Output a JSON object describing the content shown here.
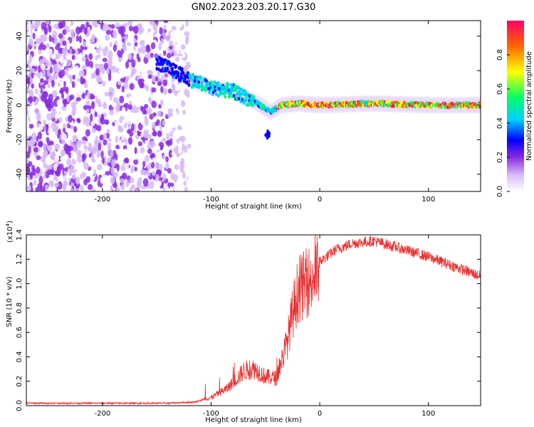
{
  "title": "GN02.2023.203.20.17.G30",
  "chart_data": [
    {
      "type": "heatmap",
      "xlabel": "Height of straight line (km)",
      "ylabel": "Frequency (Hz)",
      "xlim": [
        -270,
        148
      ],
      "ylim": [
        -50,
        49
      ],
      "xticks": [
        "-200",
        "-100",
        "0",
        "100"
      ],
      "yticks": [
        "-40",
        "-20",
        "0",
        "20",
        "40"
      ],
      "colorbar": {
        "label": "Normalized spectral amplitude",
        "range": [
          0,
          1
        ],
        "ticks": [
          "0.0",
          "0.2",
          "0.4",
          "0.6",
          "0.8"
        ],
        "colors": [
          "#ffffff",
          "#d6b8f8",
          "#8a2be2",
          "#0000ff",
          "#00cfff",
          "#00ff66",
          "#ffff00",
          "#ff6600",
          "#ff0066"
        ]
      },
      "ridge": {
        "x": [
          -150,
          -135,
          -120,
          -100,
          -80,
          -60,
          -45,
          -35,
          -20,
          0,
          50,
          100,
          148
        ],
        "y": [
          25,
          20,
          15,
          10,
          8,
          2,
          -4,
          0,
          1,
          0,
          1,
          0,
          0
        ]
      }
    },
    {
      "type": "line",
      "xlabel": "Height of straight line (km)",
      "ylabel": "SNR (10 * v/v)",
      "multiplier": "(x10",
      "multiplier_exp": "4",
      "multiplier_close": ")",
      "xlim": [
        -270,
        148
      ],
      "ylim": [
        0,
        1.4
      ],
      "xticks": [
        "-200",
        "-100",
        "0",
        "100"
      ],
      "yticks": [
        "0.0",
        "0.2",
        "0.4",
        "0.6",
        "0.8",
        "1.0",
        "1.2",
        "1.4"
      ],
      "color": "#e83030",
      "envelope": {
        "x": [
          -270,
          -200,
          -140,
          -115,
          -100,
          -85,
          -70,
          -60,
          -50,
          -40,
          -30,
          -25,
          -20,
          -10,
          0,
          15,
          30,
          50,
          70,
          100,
          130,
          148
        ],
        "y": [
          0.02,
          0.02,
          0.02,
          0.03,
          0.07,
          0.15,
          0.3,
          0.32,
          0.25,
          0.24,
          0.55,
          0.8,
          1.0,
          1.08,
          1.18,
          1.28,
          1.33,
          1.35,
          1.3,
          1.22,
          1.12,
          1.06
        ]
      }
    }
  ]
}
